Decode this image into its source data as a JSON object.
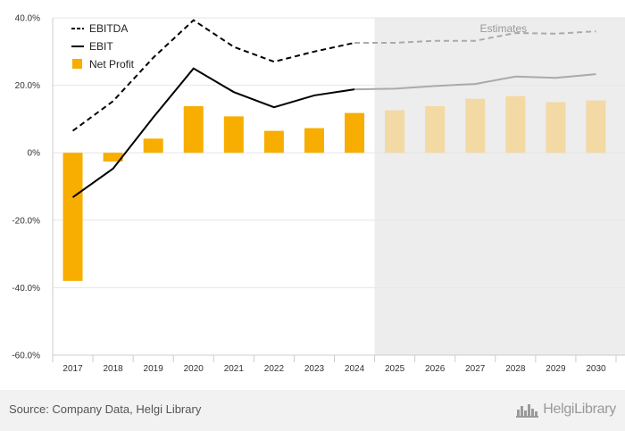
{
  "chart_data": {
    "type": "bar",
    "categories": [
      "2017",
      "2018",
      "2019",
      "2020",
      "2021",
      "2022",
      "2023",
      "2024",
      "2025",
      "2026",
      "2027",
      "2028",
      "2029",
      "2030"
    ],
    "estimates_start": "2025",
    "estimates_label": "Estimates",
    "y_ticks": [
      "40.0%",
      "20.0%",
      "0%",
      "-20.0%",
      "-40.0%",
      "-60.0%"
    ],
    "ylim": [
      -60,
      40
    ],
    "y_unit": "%",
    "grid": true,
    "legend_position": "top-left",
    "series": [
      {
        "name": "EBITDA",
        "type": "line",
        "style": "dashed",
        "values": [
          6.5,
          15.3,
          28.2,
          39.3,
          31.4,
          27.0,
          30.0,
          32.6,
          32.6,
          33.2,
          33.2,
          35.5,
          35.3,
          36.0
        ]
      },
      {
        "name": "EBIT",
        "type": "line",
        "style": "solid",
        "values": [
          -13.2,
          -4.7,
          10.5,
          25.0,
          18.0,
          13.5,
          17.0,
          18.8,
          19.0,
          19.8,
          20.4,
          22.6,
          22.2,
          23.3
        ]
      },
      {
        "name": "Net Profit",
        "type": "bar",
        "values": [
          -38.0,
          -2.6,
          4.2,
          13.8,
          10.8,
          6.5,
          7.3,
          11.8,
          12.6,
          13.8,
          16.0,
          16.8,
          15.0,
          15.5
        ]
      }
    ],
    "colors": {
      "line_actual": "#000000",
      "line_estimate": "#aaaaaa",
      "bar_actual": "#f7ae00",
      "bar_estimate": "#f3d9a4",
      "estimate_bg": "#ededed",
      "grid": "#e6e6e6"
    }
  },
  "footer": {
    "source": "Source: Company Data, Helgi Library",
    "brand": "HelgiLibrary",
    "brand_icon": "city-skyline-icon"
  }
}
